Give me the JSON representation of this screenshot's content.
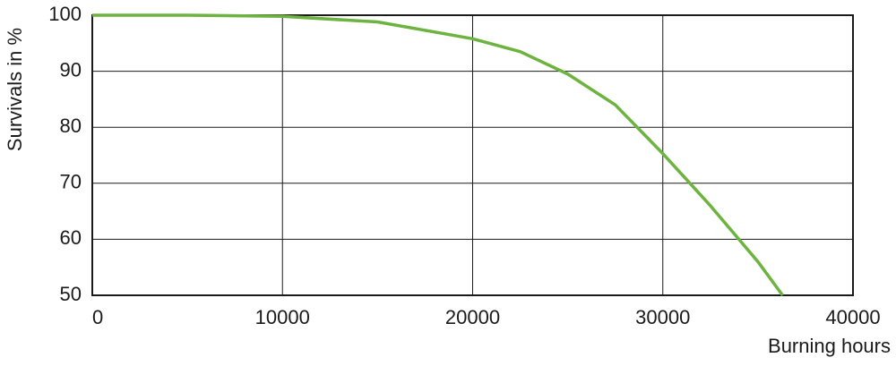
{
  "chart_data": {
    "type": "line",
    "x_label": "Burning hours",
    "y_label": "Survivals in %",
    "x": [
      0,
      5000,
      10000,
      15000,
      20000,
      22500,
      25000,
      27500,
      30000,
      32500,
      34000,
      35000,
      36300
    ],
    "series": [
      {
        "name": "Survivals",
        "color": "#6db33f",
        "values": [
          100,
          100,
          99.8,
          98.8,
          95.8,
          93.5,
          89.5,
          84,
          75.3,
          66,
          60,
          56,
          50
        ]
      }
    ],
    "xlim": [
      0,
      40000
    ],
    "xticks": [
      0,
      10000,
      20000,
      30000,
      40000
    ],
    "ylim": [
      50,
      100
    ],
    "yticks": [
      50,
      60,
      70,
      80,
      90,
      100
    ],
    "grid": true
  }
}
